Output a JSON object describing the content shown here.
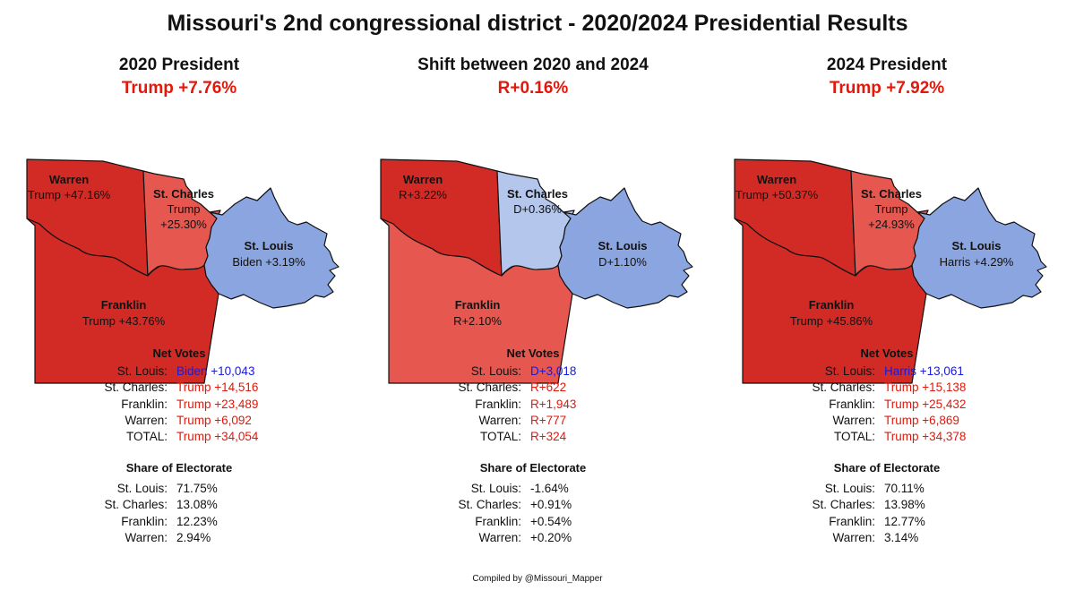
{
  "title": "Missouri's 2nd congressional district - 2020/2024 Presidential Results",
  "credit": "Compiled by @Missouri_Mapper",
  "colors": {
    "dark_red": "#d22b26",
    "light_red": "#e5574f",
    "blue": "#8aa5df",
    "light_blue": "#b4c6ec",
    "margin_red": "#e3170a",
    "dem_blue": "#1a1adb"
  },
  "panels": [
    {
      "title": "2020 President",
      "margin": "Trump +7.76%",
      "regions": {
        "warren": {
          "name": "Warren",
          "value": "Trump +47.16%",
          "fill": "#d22b26"
        },
        "stcharles": {
          "name": "St. Charles",
          "value1": "Trump",
          "value2": "+25.30%",
          "fill": "#e5574f"
        },
        "stlouis": {
          "name": "St. Louis",
          "value": "Biden +3.19%",
          "fill": "#8aa5df"
        },
        "franklin": {
          "name": "Franklin",
          "value": "Trump +43.76%",
          "fill": "#d22b26"
        }
      },
      "net_votes_title": "Net Votes",
      "net_votes": [
        {
          "label": "St. Louis:",
          "value": "Biden +10,043",
          "party": "blue"
        },
        {
          "label": "St. Charles:",
          "value": "Trump +14,516",
          "party": "red"
        },
        {
          "label": "Franklin:",
          "value": "Trump +23,489",
          "party": "red"
        },
        {
          "label": "Warren:",
          "value": "Trump +6,092",
          "party": "red"
        },
        {
          "label": "TOTAL:",
          "value": "Trump +34,054",
          "party": "red"
        }
      ],
      "share_title": "Share of Electorate",
      "share": [
        {
          "label": "St. Louis:",
          "value": "71.75%"
        },
        {
          "label": "St. Charles:",
          "value": "13.08%"
        },
        {
          "label": "Franklin:",
          "value": "12.23%"
        },
        {
          "label": "Warren:",
          "value": "2.94%"
        }
      ]
    },
    {
      "title": "Shift between 2020 and 2024",
      "margin": "R+0.16%",
      "regions": {
        "warren": {
          "name": "Warren",
          "value": "R+3.22%",
          "fill": "#d22b26"
        },
        "stcharles": {
          "name": "St. Charles",
          "value1": "D+0.36%",
          "value2": "",
          "fill": "#b4c6ec"
        },
        "stlouis": {
          "name": "St. Louis",
          "value": "D+1.10%",
          "fill": "#8aa5df"
        },
        "franklin": {
          "name": "Franklin",
          "value": "R+2.10%",
          "fill": "#e5574f"
        }
      },
      "net_votes_title": "Net Votes",
      "net_votes": [
        {
          "label": "St. Louis:",
          "value": "D+3,018",
          "party": "blue"
        },
        {
          "label": "St. Charles:",
          "value": "R+622",
          "party": "red"
        },
        {
          "label": "Franklin:",
          "value": "R+1,943",
          "party": "red"
        },
        {
          "label": "Warren:",
          "value": "R+777",
          "party": "red"
        },
        {
          "label": "TOTAL:",
          "value": "R+324",
          "party": "red"
        }
      ],
      "share_title": "Share of Electorate",
      "share": [
        {
          "label": "St. Louis:",
          "value": "-1.64%"
        },
        {
          "label": "St. Charles:",
          "value": "+0.91%"
        },
        {
          "label": "Franklin:",
          "value": "+0.54%"
        },
        {
          "label": "Warren:",
          "value": "+0.20%"
        }
      ]
    },
    {
      "title": "2024 President",
      "margin": "Trump +7.92%",
      "regions": {
        "warren": {
          "name": "Warren",
          "value": "Trump +50.37%",
          "fill": "#d22b26"
        },
        "stcharles": {
          "name": "St. Charles",
          "value1": "Trump",
          "value2": "+24.93%",
          "fill": "#e5574f"
        },
        "stlouis": {
          "name": "St. Louis",
          "value": "Harris +4.29%",
          "fill": "#8aa5df"
        },
        "franklin": {
          "name": "Franklin",
          "value": "Trump +45.86%",
          "fill": "#d22b26"
        }
      },
      "net_votes_title": "Net Votes",
      "net_votes": [
        {
          "label": "St. Louis:",
          "value": "Harris +13,061",
          "party": "blue"
        },
        {
          "label": "St. Charles:",
          "value": "Trump +15,138",
          "party": "red"
        },
        {
          "label": "Franklin:",
          "value": "Trump +25,432",
          "party": "red"
        },
        {
          "label": "Warren:",
          "value": "Trump +6,869",
          "party": "red"
        },
        {
          "label": "TOTAL:",
          "value": "Trump +34,378",
          "party": "red"
        }
      ],
      "share_title": "Share of Electorate",
      "share": [
        {
          "label": "St. Louis:",
          "value": "70.11%"
        },
        {
          "label": "St. Charles:",
          "value": "13.98%"
        },
        {
          "label": "Franklin:",
          "value": "12.77%"
        },
        {
          "label": "Warren:",
          "value": "3.14%"
        }
      ]
    }
  ]
}
